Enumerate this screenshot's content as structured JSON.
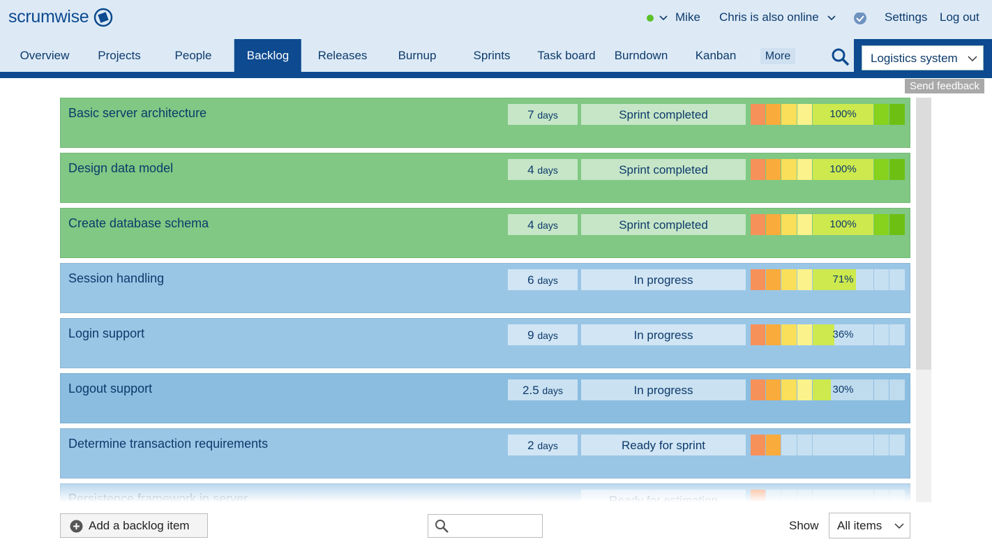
{
  "header": {
    "logo": "scrumwise",
    "user": "Mike",
    "online": "Chris is also online",
    "settings": "Settings",
    "logout": "Log out"
  },
  "nav": {
    "tabs": [
      "Overview",
      "Projects",
      "People",
      "Backlog",
      "Releases",
      "Burnup",
      "Sprints",
      "Task board",
      "Burndown",
      "Kanban"
    ],
    "active": "Backlog",
    "more": "More",
    "project": "Logistics system",
    "feedback": "Send feedback"
  },
  "backlog": {
    "items": [
      {
        "title": "Basic server architecture",
        "estimate": "7",
        "unit": "days",
        "status": "Sprint completed",
        "progress": 100,
        "progress_label": "100%"
      },
      {
        "title": "Design data model",
        "estimate": "4",
        "unit": "days",
        "status": "Sprint completed",
        "progress": 100,
        "progress_label": "100%"
      },
      {
        "title": "Create database schema",
        "estimate": "4",
        "unit": "days",
        "status": "Sprint completed",
        "progress": 100,
        "progress_label": "100%"
      },
      {
        "title": "Session handling",
        "estimate": "6",
        "unit": "days",
        "status": "In progress",
        "progress": 71,
        "progress_label": "71%"
      },
      {
        "title": "Login support",
        "estimate": "9",
        "unit": "days",
        "status": "In progress",
        "progress": 36,
        "progress_label": "36%"
      },
      {
        "title": "Logout support",
        "estimate": "2.5",
        "unit": "days",
        "status": "In progress",
        "progress": 30,
        "progress_label": "30%"
      },
      {
        "title": "Determine transaction requirements",
        "estimate": "2",
        "unit": "days",
        "status": "Ready for sprint"
      },
      {
        "title": "Persistence framework in server",
        "status": "Ready for estimation"
      }
    ]
  },
  "footer": {
    "add": "Add a backlog item",
    "show": "Show",
    "filter": "All items"
  }
}
